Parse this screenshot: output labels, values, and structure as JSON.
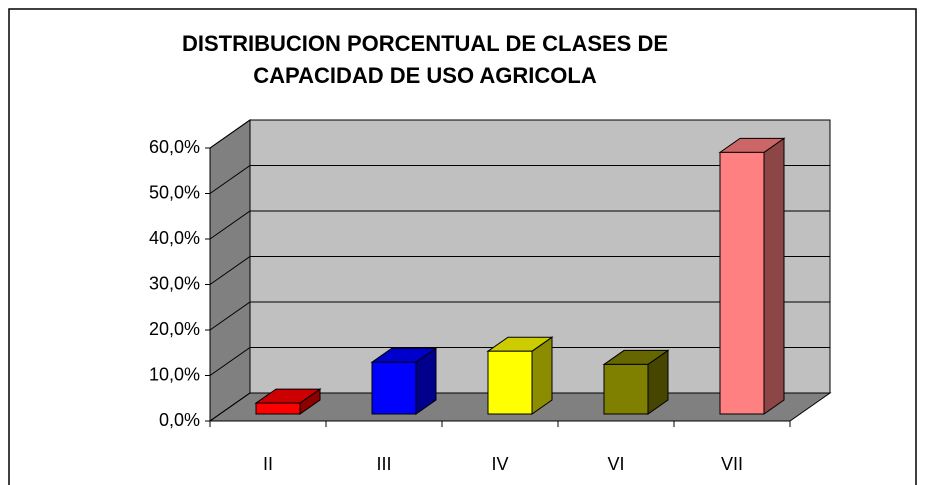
{
  "chart_data": {
    "type": "bar3d",
    "title": [
      "DISTRIBUCION PORCENTUAL DE CLASES DE",
      "CAPACIDAD DE USO AGRICOLA"
    ],
    "categories": [
      "II",
      "III",
      "IV",
      "VI",
      "VII"
    ],
    "values": [
      2.4,
      11.4,
      13.8,
      10.9,
      57.5
    ],
    "colors": [
      "#ff0000",
      "#0000ff",
      "#ffff00",
      "#808000",
      "#ff8080"
    ],
    "ylim": [
      0,
      60
    ],
    "yticks": [
      {
        "value": 0,
        "label": "0,0%"
      },
      {
        "value": 10,
        "label": "10,0%"
      },
      {
        "value": 20,
        "label": "20,0%"
      },
      {
        "value": 30,
        "label": "30,0%"
      },
      {
        "value": 40,
        "label": "40,0%"
      },
      {
        "value": 50,
        "label": "50,0%"
      },
      {
        "value": 60,
        "label": "60,0%"
      }
    ],
    "grid": true
  }
}
